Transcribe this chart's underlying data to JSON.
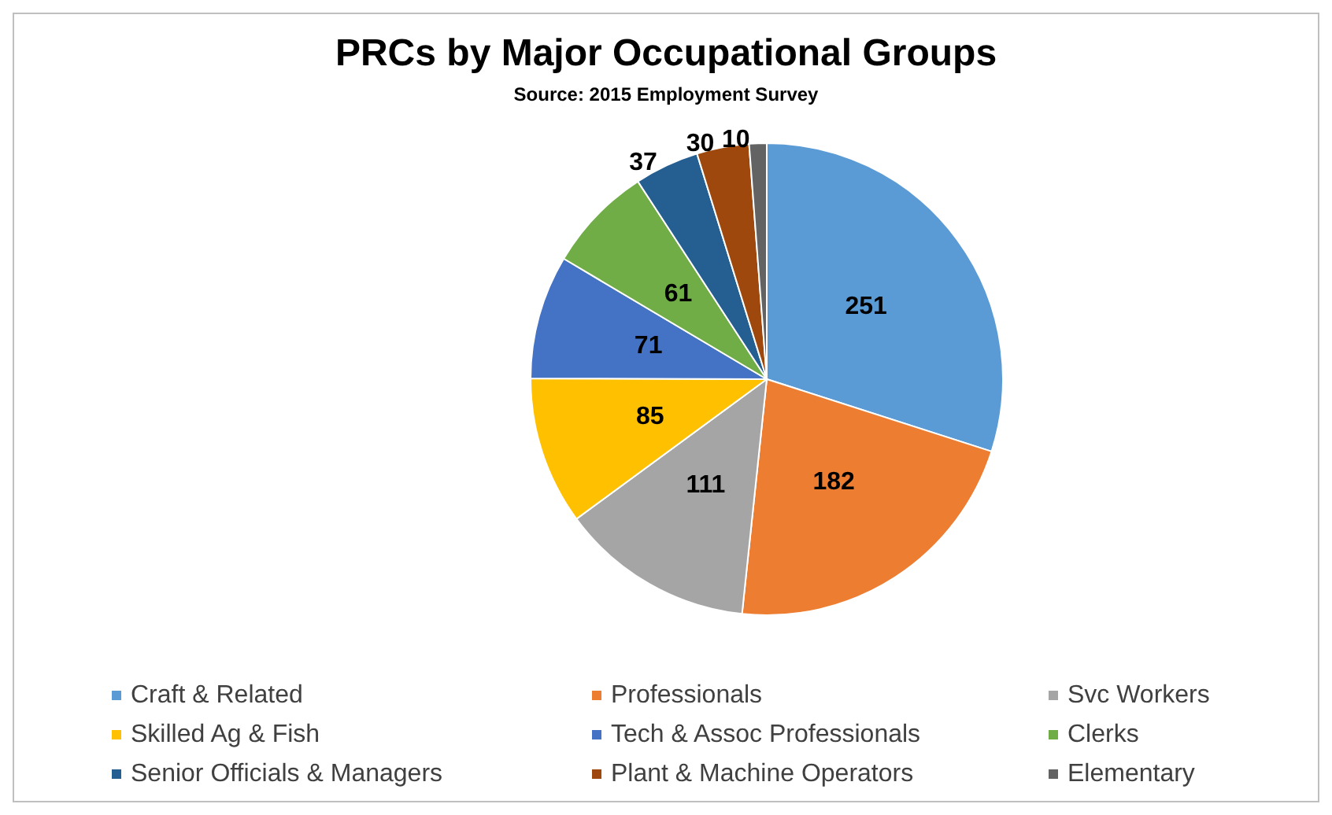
{
  "chart_data": {
    "type": "pie",
    "title": "PRCs by Major Occupational Groups",
    "subtitle": "Source: 2015 Employment Survey",
    "categories": [
      "Craft & Related",
      "Professionals",
      "Svc Workers",
      "Skilled Ag & Fish",
      "Tech & Assoc Professionals",
      "Clerks",
      "Senior Officials & Managers",
      "Plant & Machine Operators",
      "Elementary"
    ],
    "values": [
      251,
      182,
      111,
      85,
      71,
      61,
      37,
      30,
      10
    ],
    "colors": [
      "#5b9bd5",
      "#ed7d31",
      "#a5a5a5",
      "#ffc000",
      "#4472c4",
      "#70ad47",
      "#255e91",
      "#9e480e",
      "#636363"
    ],
    "data_labels": true,
    "legend": "bottom"
  }
}
